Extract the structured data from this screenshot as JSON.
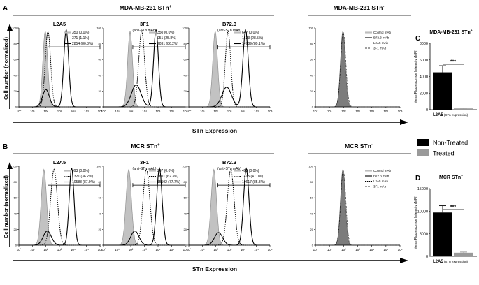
{
  "panel_letters": [
    "A",
    "B",
    "C",
    "D"
  ],
  "rows": [
    {
      "letter": "A",
      "pos_title": "MDA-MB-231 STn",
      "pos_sup": "+",
      "neg_title": "MDA-MB-231 STn",
      "neg_sup": "-",
      "ylabel": "Cell number (normalized)",
      "xlabel": "STn Expression",
      "panels": [
        {
          "name": "L2A5",
          "sub": "",
          "legend": [
            "350 (0.0%)",
            "371 (1.1%)",
            "2854 (80.3%)"
          ]
        },
        {
          "name": "3F1",
          "sub": "(anti-STn mAb)",
          "legend": [
            "350 (0.0%)",
            "951 (25.8%)",
            "7031 (86.2%)"
          ]
        },
        {
          "name": "B72.3",
          "sub": "(anti-STn mAb)",
          "legend": [
            "647 (0.0%)",
            "1423 (28.5%)",
            "14789 (89.1%)"
          ]
        }
      ],
      "neg_legend": [
        "Control mAb",
        "B72.3 mAb",
        "L2A5 mAb",
        "3F1 mAb"
      ]
    },
    {
      "letter": "B",
      "pos_title": "MCR STn",
      "pos_sup": "+",
      "neg_title": "MCR STn",
      "neg_sup": "-",
      "ylabel": "Cell number (normalized)",
      "xlabel": "STn Expression",
      "panels": [
        {
          "name": "L2A5",
          "sub": "",
          "legend": [
            "493 (0.0%)",
            "1321 (36.2%)",
            "10588 (87.9%)"
          ]
        },
        {
          "name": "3F1",
          "sub": "(anti-STn mAb)",
          "legend": [
            "367 (0.0%)",
            "1801 (62.3%)",
            "15502 (77.7%)"
          ]
        },
        {
          "name": "B72.3",
          "sub": "(anti-STn mAb)",
          "legend": [
            "493 (0.0%)",
            "1415 (47.0%)",
            "19617 (85.8%)"
          ]
        }
      ],
      "neg_legend": [
        "Control mAb",
        "B72.3 mAb",
        "L2A5 mAb",
        "3F1 mAb"
      ]
    }
  ],
  "histogram_axes": {
    "y_ticks": [
      "0",
      "20",
      "40",
      "60",
      "80",
      "100"
    ],
    "x_ticks": [
      "10°",
      "10¹",
      "10²",
      "10³",
      "10⁴",
      "10⁵",
      "10⁶"
    ]
  },
  "bar_panels": [
    {
      "letter": "C",
      "title": "MDA-MB-231 STn",
      "title_sup": "+",
      "ylabel": "Mean Fluorescence Intensity (MFI)",
      "xlabel_bold": "L2A5",
      "xlabel_rest": " (STn expression)",
      "sig": "***",
      "y_ticks": [
        "0",
        "2000",
        "4000",
        "6000",
        "8000"
      ]
    },
    {
      "letter": "D",
      "title": "MCR STn",
      "title_sup": "+",
      "ylabel": "Mean Fluorescence Intensity (MFI)",
      "xlabel_bold": "L2A5",
      "xlabel_rest": " (STn expression)",
      "sig": "***",
      "y_ticks": [
        "0",
        "5000",
        "10000",
        "15000"
      ]
    }
  ],
  "legend": [
    {
      "label": "Non-Treated",
      "color": "#000000"
    },
    {
      "label": "Treated",
      "color": "#9a9a9a"
    }
  ],
  "chart_data": [
    {
      "type": "bar",
      "panel": "C",
      "title": "MDA-MB-231 STn+",
      "ylabel": "Mean Fluorescence Intensity (MFI)",
      "xlabel": "L2A5 (STn expression)",
      "ylim": [
        0,
        8000
      ],
      "series": [
        {
          "name": "Non-Treated",
          "values": [
            4500
          ],
          "error": [
            800
          ]
        },
        {
          "name": "Treated",
          "values": [
            150
          ],
          "error": [
            40
          ]
        }
      ]
    },
    {
      "type": "bar",
      "panel": "D",
      "title": "MCR STn+",
      "ylabel": "Mean Fluorescence Intensity (MFI)",
      "xlabel": "L2A5 (STn expression)",
      "ylim": [
        0,
        15000
      ],
      "series": [
        {
          "name": "Non-Treated",
          "values": [
            9700
          ],
          "error": [
            1500
          ]
        },
        {
          "name": "Treated",
          "values": [
            800
          ],
          "error": [
            150
          ]
        }
      ]
    }
  ]
}
